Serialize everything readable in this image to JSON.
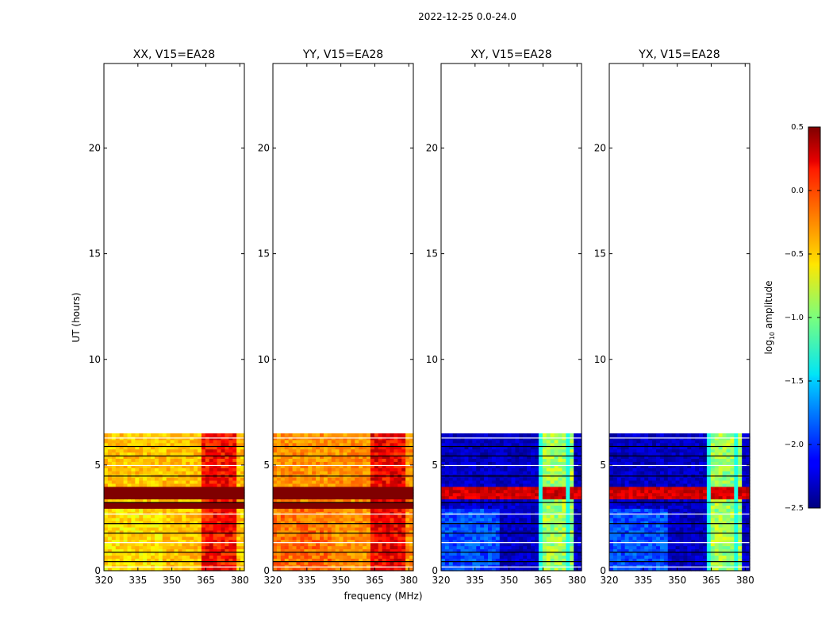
{
  "figure": {
    "title": "2022-12-25 0.0-24.0",
    "xlabel": "frequency (MHz)",
    "ylabel": "UT (hours)",
    "colorbar_label": "log10 amplitude",
    "colorbar_label_base": "log",
    "colorbar_label_sub": "10",
    "colorbar_label_rest": " amplitude",
    "colorbar_ticks": [
      "0.5",
      "0.0",
      "−0.5",
      "−1.0",
      "−1.5",
      "−2.0",
      "−2.5"
    ],
    "colorbar_tick_values": [
      0.5,
      0.0,
      -0.5,
      -1.0,
      -1.5,
      -2.0,
      -2.5
    ],
    "colorbar_range": [
      -2.5,
      0.5
    ]
  },
  "chart_data": [
    {
      "type": "heatmap",
      "title": "XX, V15=EA28",
      "xlabel": "frequency (MHz)",
      "ylabel": "UT (hours)",
      "xlim": [
        320,
        382
      ],
      "ylim": [
        0,
        24
      ],
      "xticks": [
        320,
        335,
        350,
        365,
        380
      ],
      "yticks": [
        0,
        5,
        10,
        15,
        20
      ],
      "data_ut_range": [
        0,
        6.5
      ],
      "base_level": -0.45,
      "base_level_lowband": -0.55,
      "band_365_380_level": 0.1,
      "saturated_rows_ut": [
        3.1,
        3.5,
        3.7,
        3.9
      ]
    },
    {
      "type": "heatmap",
      "title": "YY, V15=EA28",
      "xlabel": "frequency (MHz)",
      "ylabel": "",
      "xlim": [
        320,
        382
      ],
      "ylim": [
        0,
        24
      ],
      "xticks": [
        320,
        335,
        350,
        365,
        380
      ],
      "yticks": [
        0,
        5,
        10,
        15,
        20
      ],
      "data_ut_range": [
        0,
        6.5
      ],
      "base_level": -0.3,
      "base_level_lowband": -0.2,
      "band_365_380_level": 0.15,
      "saturated_rows_ut": [
        3.1,
        3.5,
        3.7,
        3.9
      ]
    },
    {
      "type": "heatmap",
      "title": "XY, V15=EA28",
      "xlabel": "frequency (MHz)",
      "ylabel": "",
      "xlim": [
        320,
        382
      ],
      "ylim": [
        0,
        24
      ],
      "xticks": [
        320,
        335,
        350,
        365,
        380
      ],
      "yticks": [
        0,
        5,
        10,
        15,
        20
      ],
      "data_ut_range": [
        0,
        6.5
      ],
      "base_level": -2.3,
      "base_level_lowband": -1.9,
      "band_365_380_level": -0.9,
      "saturated_rows_ut": [
        3.5,
        3.7,
        3.9
      ]
    },
    {
      "type": "heatmap",
      "title": "YX, V15=EA28",
      "xlabel": "frequency (MHz)",
      "ylabel": "",
      "xlim": [
        320,
        382
      ],
      "ylim": [
        0,
        24
      ],
      "xticks": [
        320,
        335,
        350,
        365,
        380
      ],
      "yticks": [
        0,
        5,
        10,
        15,
        20
      ],
      "data_ut_range": [
        0,
        6.5
      ],
      "base_level": -2.3,
      "base_level_lowband": -1.9,
      "band_365_380_level": -0.9,
      "saturated_rows_ut": [
        3.5,
        3.7,
        3.9
      ]
    }
  ]
}
